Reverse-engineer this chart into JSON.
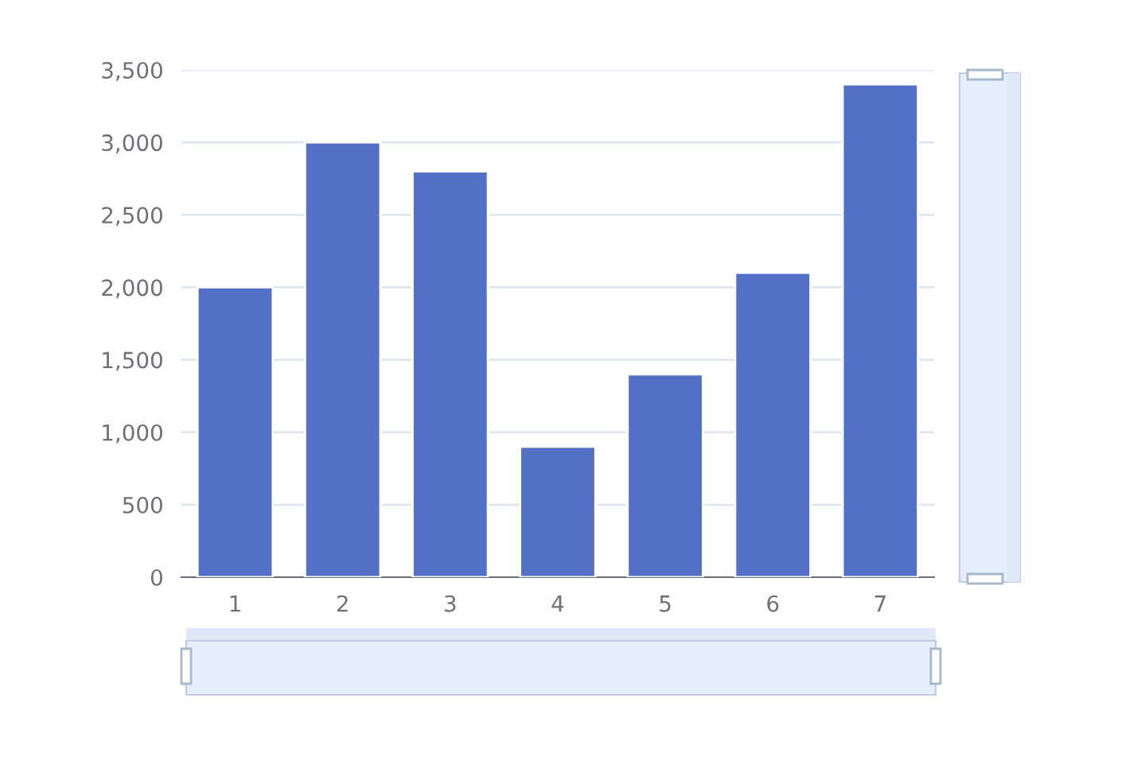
{
  "chart_data": {
    "type": "bar",
    "categories": [
      "1",
      "2",
      "3",
      "4",
      "5",
      "6",
      "7"
    ],
    "values": [
      2000,
      3000,
      2800,
      900,
      1400,
      2100,
      3400
    ],
    "color": "#5470c6",
    "ylim": [
      0,
      3500
    ],
    "yticks": [
      {
        "value": 0,
        "label": "0"
      },
      {
        "value": 500,
        "label": "500"
      },
      {
        "value": 1000,
        "label": "1,000"
      },
      {
        "value": 1500,
        "label": "1,500"
      },
      {
        "value": 2000,
        "label": "2,000"
      },
      {
        "value": 2500,
        "label": "2,500"
      },
      {
        "value": 3000,
        "label": "3,000"
      },
      {
        "value": 3500,
        "label": "3,500"
      }
    ],
    "grid": "y",
    "legend": false
  }
}
